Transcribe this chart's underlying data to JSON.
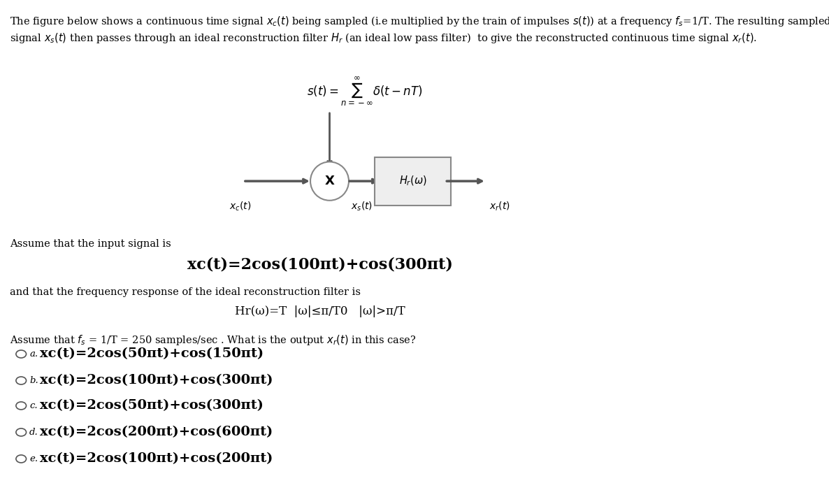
{
  "title_text": "The figure below shows a continuous time signal $x_c(t)$ being sampled (i.e multiplied by the train of impulses $s(t)$) at a frequency $f_s$=1/T. The resulting sampled\nsignal $x_s(t)$ then passes through an ideal reconstruction filter $H_r$ (an ideal low pass filter)  to give the reconstructed continuous time signal $x_r(t)$.",
  "impulse_eq": "$s(t) = \\sum_{n=-\\infty}^{\\infty} \\delta(t - nT)$",
  "input_label": "$x_c(t)$",
  "mult_label": "X",
  "sampled_label": "$x_s(t)$",
  "filter_label": "$H_r(\\omega)$",
  "output_label": "$x_r(t)$",
  "assume_input": "Assume that the input signal is",
  "input_signal": "xc(t)=2cos(100πt)+cos(300πt)",
  "filter_text": "and that the frequency response of the ideal reconstruction filter is",
  "filter_eq": "Hr(ω)=T  |ω|≤π/T0   |ω|>π/T",
  "assume_fs": "Assume that $f_s$ = 1/T = 250 samples/sec . What is the output $x_r(t)$ in this case?",
  "options": [
    {
      "label": "a",
      "text": "xc(t)=2cos(50πt)+cos(150πt)"
    },
    {
      "label": "b",
      "text": "xc(t)=2cos(100πt)+cos(300πt)"
    },
    {
      "label": "c",
      "text": "xc(t)=2cos(50πt)+cos(300πt)"
    },
    {
      "label": "d",
      "text": "xc(t)=2cos(200πt)+cos(600πt)"
    },
    {
      "label": "e",
      "text": "xc(t)=2cos(100πt)+cos(200πt)"
    }
  ],
  "bg_color": "#ffffff",
  "text_color": "#000000",
  "arrow_color": "#555555",
  "box_color": "#cccccc",
  "circle_color": "#ffffff"
}
